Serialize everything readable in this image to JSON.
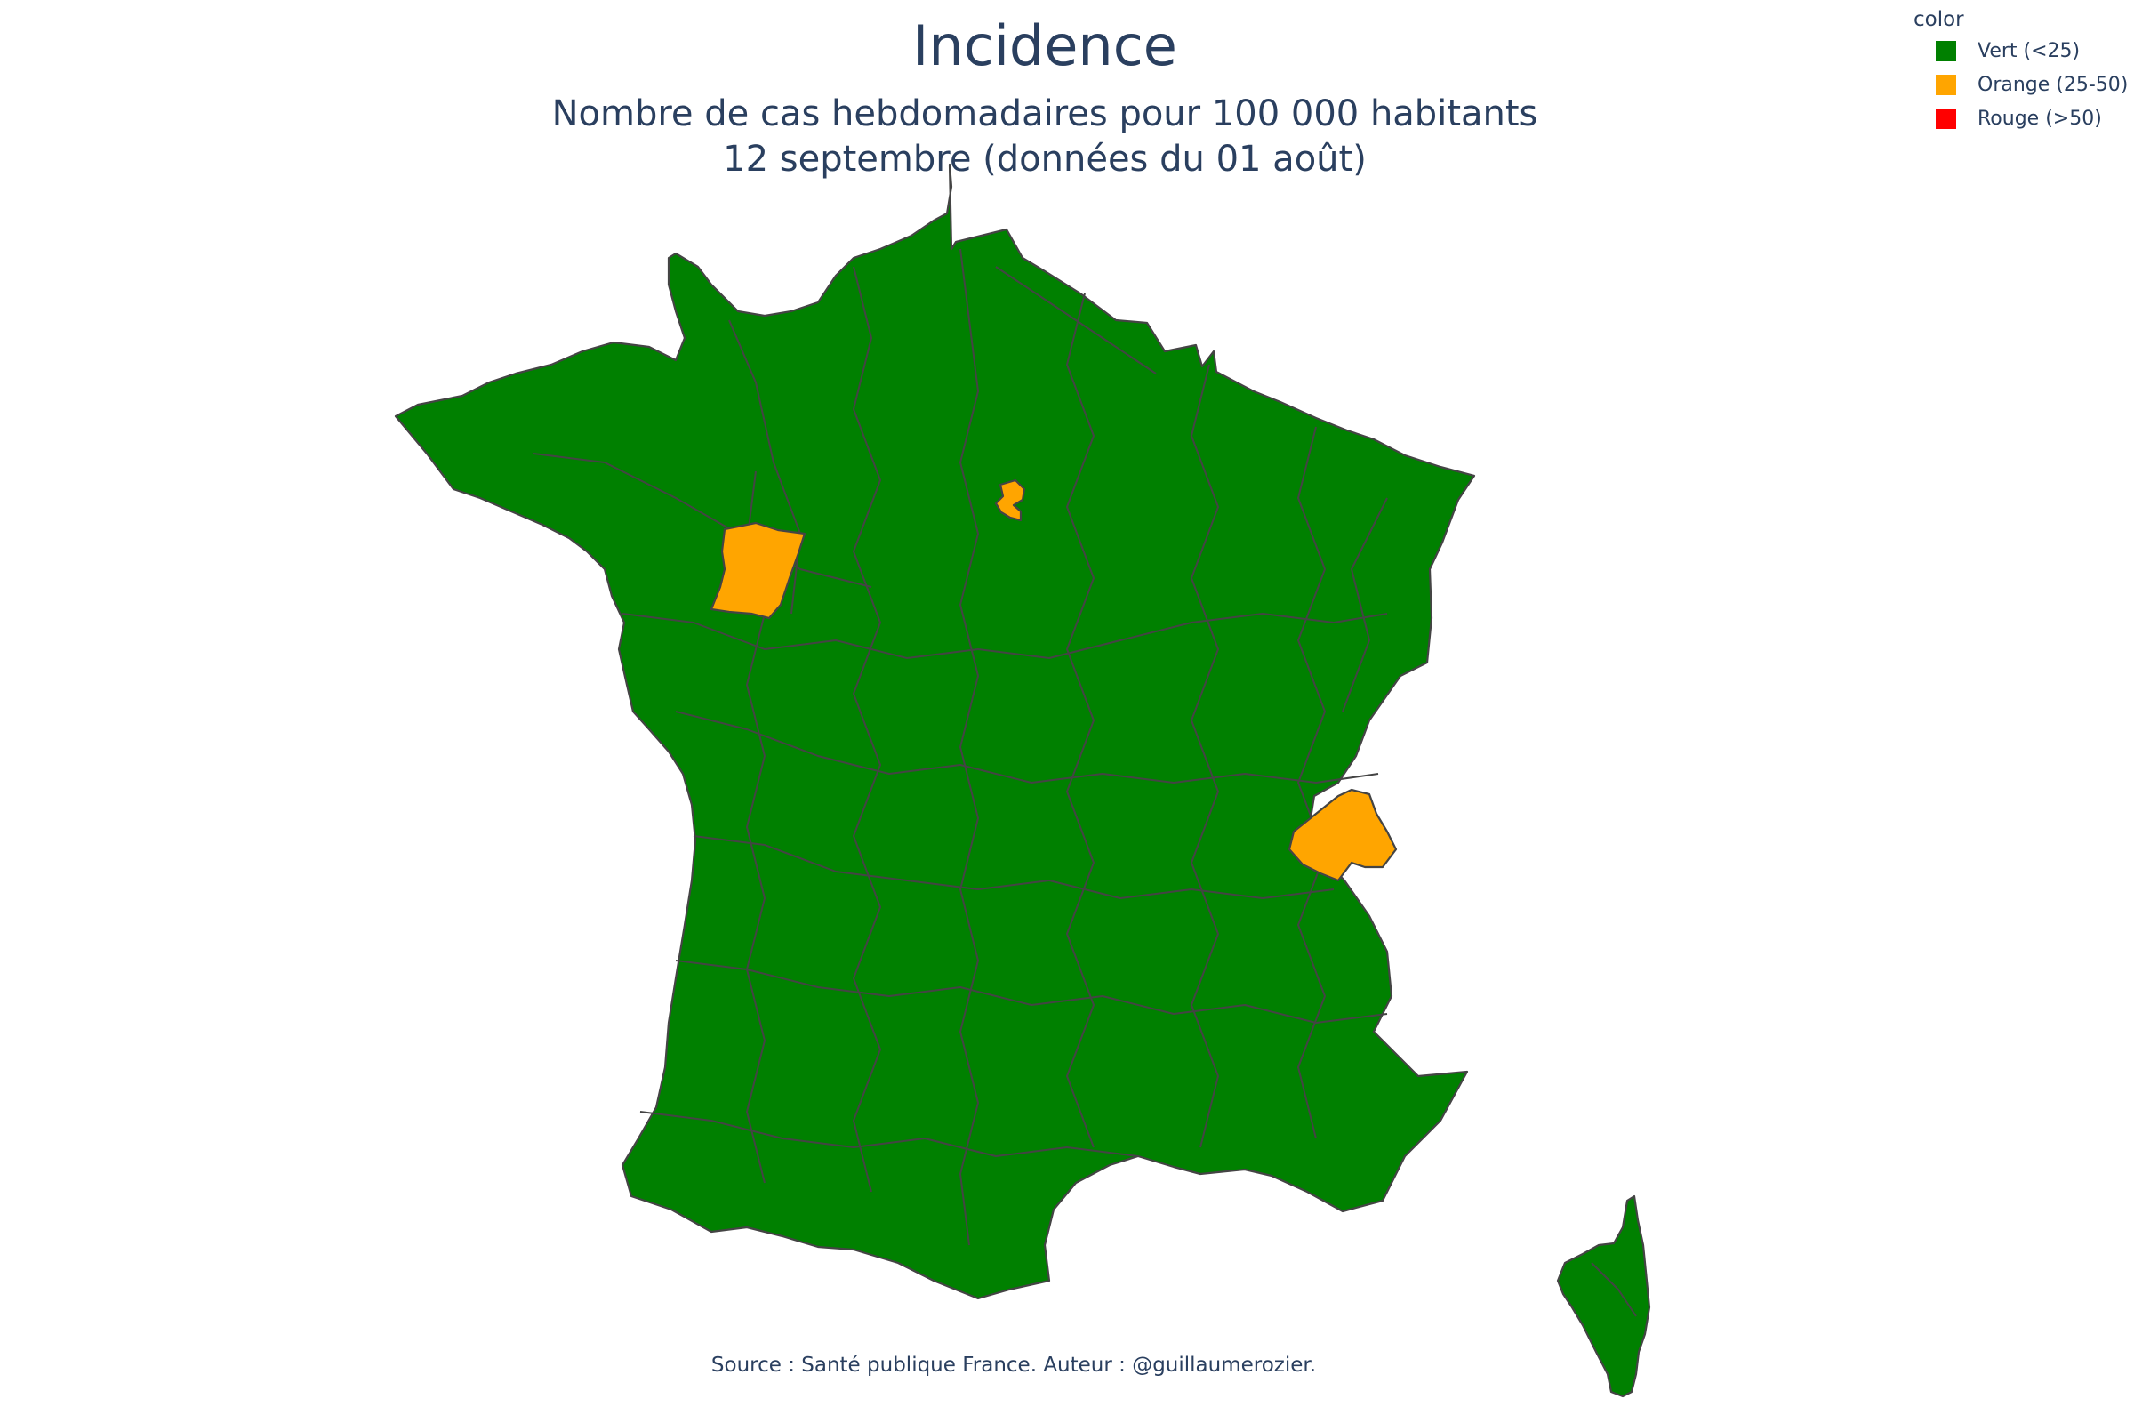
{
  "title": "Incidence",
  "subtitle_line1": "Nombre de cas hebdomadaires pour 100 000 habitants",
  "subtitle_line2": "12 septembre (données du 01 août)",
  "source": "Source : Santé publique France. Auteur : @guillaumerozier.",
  "legend": {
    "title": "color",
    "items": [
      {
        "label": "Vert (<25)",
        "color": "#008000"
      },
      {
        "label": "Orange (25-50)",
        "color": "#ffa500"
      },
      {
        "label": "Rouge (>50)",
        "color": "#ff0000"
      }
    ]
  },
  "map": {
    "categories": {
      "vert": "#008000",
      "orange": "#ffa500",
      "rouge": "#ff0000"
    },
    "highlighted_departments": [
      {
        "category": "orange"
      },
      {
        "category": "orange"
      },
      {
        "category": "orange"
      }
    ]
  }
}
